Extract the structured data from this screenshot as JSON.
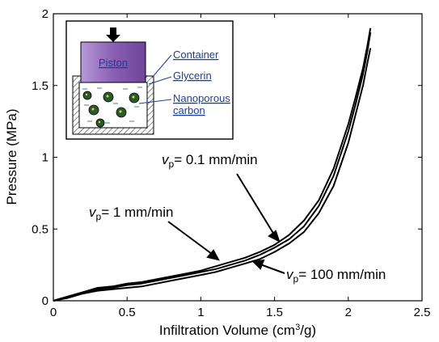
{
  "chart_data": {
    "type": "line",
    "xlabel": "Infiltration Volume (cm",
    "xlabel_sup": "3",
    "xlabel_tail": "/g)",
    "ylabel": "Pressure (MPa)",
    "xlim": [
      0,
      2.5
    ],
    "ylim": [
      0,
      2
    ],
    "xticks": [
      0,
      0.5,
      1,
      1.5,
      2,
      2.5
    ],
    "yticks": [
      0,
      0.5,
      1,
      1.5,
      2
    ],
    "xtick_labels": [
      "0",
      "0.5",
      "1",
      "1.5",
      "2",
      "2.5"
    ],
    "ytick_labels": [
      "0",
      "0.5",
      "1",
      "1.5",
      "2"
    ],
    "grid": false,
    "series": [
      {
        "annotation": {
          "v": "v",
          "sub": "p",
          "rest": "= 0.1 mm/min"
        },
        "x": [
          0,
          0.1,
          0.2,
          0.3,
          0.4,
          0.5,
          0.6,
          0.7,
          0.8,
          0.9,
          1.0,
          1.1,
          1.2,
          1.3,
          1.4,
          1.5,
          1.6,
          1.7,
          1.8,
          1.9,
          2.0,
          2.05,
          2.1,
          2.13,
          2.15
        ],
        "y": [
          0,
          0.03,
          0.06,
          0.09,
          0.1,
          0.12,
          0.13,
          0.15,
          0.17,
          0.19,
          0.21,
          0.24,
          0.27,
          0.3,
          0.34,
          0.39,
          0.46,
          0.56,
          0.7,
          0.92,
          1.23,
          1.42,
          1.62,
          1.78,
          1.9
        ]
      },
      {
        "annotation": {
          "v": "v",
          "sub": "p",
          "rest": "= 1 mm/min"
        },
        "x": [
          0,
          0.1,
          0.2,
          0.3,
          0.4,
          0.5,
          0.6,
          0.7,
          0.8,
          0.9,
          1.0,
          1.1,
          1.2,
          1.3,
          1.4,
          1.5,
          1.6,
          1.7,
          1.8,
          1.9,
          2.0,
          2.05,
          2.1,
          2.13,
          2.15
        ],
        "y": [
          0,
          0.03,
          0.06,
          0.08,
          0.09,
          0.11,
          0.12,
          0.14,
          0.16,
          0.18,
          0.2,
          0.22,
          0.25,
          0.28,
          0.32,
          0.37,
          0.43,
          0.52,
          0.66,
          0.87,
          1.18,
          1.37,
          1.58,
          1.74,
          1.87
        ]
      },
      {
        "annotation": {
          "v": "v",
          "sub": "p",
          "rest": "= 100 mm/min"
        },
        "x": [
          0,
          0.1,
          0.2,
          0.3,
          0.4,
          0.5,
          0.6,
          0.7,
          0.8,
          0.9,
          1.0,
          1.1,
          1.2,
          1.3,
          1.4,
          1.5,
          1.6,
          1.7,
          1.8,
          1.9,
          2.0,
          2.05,
          2.1,
          2.13,
          2.15
        ],
        "y": [
          0,
          0.02,
          0.05,
          0.07,
          0.08,
          0.09,
          0.1,
          0.12,
          0.14,
          0.16,
          0.18,
          0.2,
          0.23,
          0.26,
          0.29,
          0.34,
          0.4,
          0.48,
          0.61,
          0.8,
          1.1,
          1.3,
          1.5,
          1.66,
          1.76
        ]
      }
    ],
    "inset": {
      "piston_label": "Piston",
      "container_label": "Container",
      "glycerin_label": "Glycerin",
      "carbon_label_1": "Nanoporous",
      "carbon_label_2": "carbon"
    },
    "colors": {
      "line": "#000000",
      "piston": "#8a5fb4",
      "inset_text": "#1a3f9c",
      "glycerin": "#ffffff",
      "carbon": "#2a5a2a"
    }
  }
}
